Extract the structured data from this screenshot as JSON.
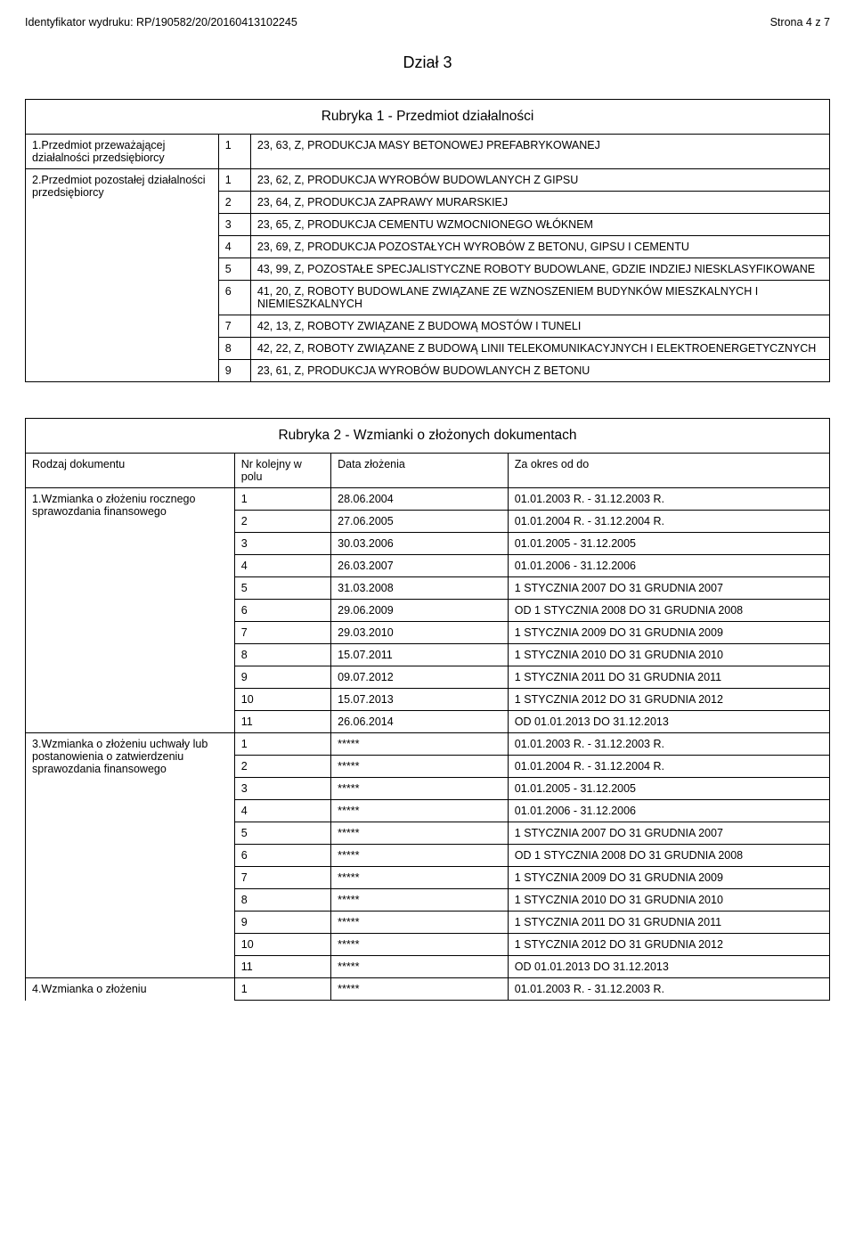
{
  "header": {
    "left": "Identyfikator wydruku: RP/190582/20/20160413102245",
    "right": "Strona 4 z 7"
  },
  "section_title": "Dział 3",
  "rubryka1": {
    "title": "Rubryka 1 - Przedmiot działalności",
    "row1_label": "1.Przedmiot przeważającej działalności przedsiębiorcy",
    "row1_num": "1",
    "row1_text": "23, 63, Z, PRODUKCJA MASY BETONOWEJ PREFABRYKOWANEJ",
    "row2_label": "2.Przedmiot pozostałej działalności przedsiębiorcy",
    "items": [
      {
        "n": "1",
        "t": "23, 62, Z, PRODUKCJA WYROBÓW BUDOWLANYCH Z GIPSU"
      },
      {
        "n": "2",
        "t": "23, 64, Z, PRODUKCJA ZAPRAWY MURARSKIEJ"
      },
      {
        "n": "3",
        "t": "23, 65, Z, PRODUKCJA CEMENTU WZMOCNIONEGO WŁÓKNEM"
      },
      {
        "n": "4",
        "t": "23, 69, Z, PRODUKCJA POZOSTAŁYCH WYROBÓW Z BETONU, GIPSU I CEMENTU"
      },
      {
        "n": "5",
        "t": "43, 99, Z, POZOSTAŁE SPECJALISTYCZNE ROBOTY BUDOWLANE, GDZIE INDZIEJ NIESKLASYFIKOWANE"
      },
      {
        "n": "6",
        "t": "41, 20, Z, ROBOTY BUDOWLANE ZWIĄZANE ZE WZNOSZENIEM BUDYNKÓW MIESZKALNYCH I NIEMIESZKALNYCH"
      },
      {
        "n": "7",
        "t": "42, 13, Z, ROBOTY ZWIĄZANE Z BUDOWĄ MOSTÓW I TUNELI"
      },
      {
        "n": "8",
        "t": "42, 22, Z, ROBOTY ZWIĄZANE Z BUDOWĄ LINII TELEKOMUNIKACYJNYCH I ELEKTROENERGETYCZNYCH"
      },
      {
        "n": "9",
        "t": "23, 61, Z, PRODUKCJA WYROBÓW BUDOWLANYCH Z BETONU"
      }
    ]
  },
  "rubryka2": {
    "title": "Rubryka 2 - Wzmianki o złożonych dokumentach",
    "h1": "Rodzaj dokumentu",
    "h2": "Nr kolejny w polu",
    "h3": "Data złożenia",
    "h4": "Za okres od do",
    "g1_label": "1.Wzmianka o złożeniu rocznego sprawozdania finansowego",
    "g1": [
      {
        "n": "1",
        "d": "28.06.2004",
        "o": "01.01.2003 R. - 31.12.2003 R."
      },
      {
        "n": "2",
        "d": "27.06.2005",
        "o": "01.01.2004 R. - 31.12.2004 R."
      },
      {
        "n": "3",
        "d": "30.03.2006",
        "o": "01.01.2005 - 31.12.2005"
      },
      {
        "n": "4",
        "d": "26.03.2007",
        "o": "01.01.2006 - 31.12.2006"
      },
      {
        "n": "5",
        "d": "31.03.2008",
        "o": "1 STYCZNIA 2007 DO 31 GRUDNIA 2007"
      },
      {
        "n": "6",
        "d": "29.06.2009",
        "o": "OD 1 STYCZNIA 2008 DO 31 GRUDNIA 2008"
      },
      {
        "n": "7",
        "d": "29.03.2010",
        "o": "1 STYCZNIA 2009 DO 31 GRUDNIA 2009"
      },
      {
        "n": "8",
        "d": "15.07.2011",
        "o": "1 STYCZNIA 2010 DO 31 GRUDNIA 2010"
      },
      {
        "n": "9",
        "d": "09.07.2012",
        "o": "1 STYCZNIA 2011 DO 31 GRUDNIA 2011"
      },
      {
        "n": "10",
        "d": "15.07.2013",
        "o": "1 STYCZNIA 2012 DO 31 GRUDNIA 2012"
      },
      {
        "n": "11",
        "d": "26.06.2014",
        "o": "OD 01.01.2013 DO 31.12.2013"
      }
    ],
    "g3_label": "3.Wzmianka o złożeniu uchwały lub postanowienia o zatwierdzeniu sprawozdania finansowego",
    "g3": [
      {
        "n": "1",
        "d": "*****",
        "o": "01.01.2003 R. - 31.12.2003 R."
      },
      {
        "n": "2",
        "d": "*****",
        "o": "01.01.2004 R. - 31.12.2004 R."
      },
      {
        "n": "3",
        "d": "*****",
        "o": "01.01.2005 - 31.12.2005"
      },
      {
        "n": "4",
        "d": "*****",
        "o": "01.01.2006 - 31.12.2006"
      },
      {
        "n": "5",
        "d": "*****",
        "o": "1 STYCZNIA 2007 DO 31 GRUDNIA 2007"
      },
      {
        "n": "6",
        "d": "*****",
        "o": "OD 1 STYCZNIA 2008 DO 31 GRUDNIA 2008"
      },
      {
        "n": "7",
        "d": "*****",
        "o": "1 STYCZNIA 2009 DO 31 GRUDNIA 2009"
      },
      {
        "n": "8",
        "d": "*****",
        "o": "1 STYCZNIA 2010 DO 31 GRUDNIA 2010"
      },
      {
        "n": "9",
        "d": "*****",
        "o": "1 STYCZNIA 2011 DO 31 GRUDNIA 2011"
      },
      {
        "n": "10",
        "d": "*****",
        "o": "1 STYCZNIA 2012 DO 31 GRUDNIA 2012"
      },
      {
        "n": "11",
        "d": "*****",
        "o": "OD 01.01.2013 DO 31.12.2013"
      }
    ],
    "g4_label": "4.Wzmianka o złożeniu",
    "g4": [
      {
        "n": "1",
        "d": "*****",
        "o": "01.01.2003 R. - 31.12.2003 R."
      }
    ]
  }
}
